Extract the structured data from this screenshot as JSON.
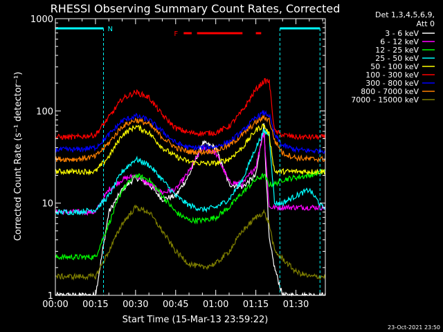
{
  "chart_data": {
    "type": "line",
    "title": "RHESSI Observing Summary Count Rates, Corrected",
    "xlabel": "Start Time (15-Mar-13 23:59:22)",
    "ylabel": "Corrected Count Rate (s⁻¹ detector⁻¹)",
    "yscale": "log",
    "ylim": [
      1,
      1000
    ],
    "xlim_min": [
      0,
      101
    ],
    "x_ticks": [
      "00:00",
      "00:15",
      "00:30",
      "00:45",
      "01:00",
      "01:15",
      "01:30"
    ],
    "x_tick_minutes": [
      0,
      15,
      30,
      45,
      60,
      75,
      90
    ],
    "y_ticks": [
      "1",
      "10",
      "100",
      "1000"
    ],
    "y_tick_values": [
      1,
      10,
      100,
      1000
    ],
    "legend_header": [
      "Det 1,3,4,5,6,9,",
      "Att 0"
    ],
    "legend_position": "right",
    "annotations": {
      "night_label": "N",
      "night_intervals_min": [
        [
          0,
          18
        ],
        [
          84,
          99
        ]
      ],
      "flare_label": "F",
      "flare_segments_min": [
        [
          48,
          51
        ],
        [
          53,
          70
        ],
        [
          75,
          77
        ]
      ]
    },
    "footer_date": "23-Oct-2021 23:50",
    "x_min": [
      1,
      8,
      15,
      20,
      25,
      30,
      35,
      40,
      45,
      50,
      55,
      60,
      65,
      70,
      75,
      78,
      80,
      82,
      85,
      90,
      95,
      100
    ],
    "series": [
      {
        "name": "3 - 6 keV",
        "color": "#ffffff",
        "values": [
          1,
          1,
          1,
          8,
          14,
          19,
          16,
          11,
          12,
          20,
          45,
          40,
          16,
          15,
          20,
          70,
          4,
          2,
          1,
          1,
          1,
          1
        ]
      },
      {
        "name": "6 - 12 keV",
        "color": "#ff00ff",
        "values": [
          8,
          8,
          8,
          14,
          18,
          20,
          16,
          13,
          14,
          22,
          40,
          35,
          17,
          16,
          25,
          60,
          9,
          9,
          9,
          9,
          9,
          9
        ]
      },
      {
        "name": "12 - 25 keV",
        "color": "#00ff00",
        "values": [
          2.6,
          2.6,
          2.6,
          6,
          14,
          20,
          18,
          12,
          8,
          6.5,
          6.5,
          7,
          9,
          13,
          18,
          20,
          16,
          16,
          18,
          19,
          20,
          22
        ]
      },
      {
        "name": "25 - 50 keV",
        "color": "#00ffff",
        "values": [
          8,
          8,
          8.5,
          12,
          22,
          30,
          26,
          18,
          12,
          9.5,
          8.5,
          9,
          11,
          18,
          40,
          60,
          55,
          10,
          10,
          12,
          14,
          9
        ]
      },
      {
        "name": "50 - 100 keV",
        "color": "#ffff00",
        "values": [
          22,
          22,
          22,
          32,
          55,
          68,
          58,
          40,
          32,
          28,
          27,
          27,
          30,
          40,
          62,
          70,
          55,
          22,
          22,
          22,
          22,
          22
        ]
      },
      {
        "name": "100 - 300 keV",
        "color": "#ff0000",
        "values": [
          52,
          52,
          55,
          85,
          135,
          160,
          140,
          90,
          65,
          58,
          57,
          58,
          68,
          100,
          170,
          210,
          210,
          60,
          55,
          52,
          52,
          52
        ]
      },
      {
        "name": "300 - 800 keV",
        "color": "#0000ff",
        "values": [
          38,
          38,
          40,
          55,
          78,
          88,
          80,
          60,
          45,
          40,
          40,
          41,
          46,
          60,
          85,
          95,
          90,
          55,
          42,
          38,
          37,
          37
        ]
      },
      {
        "name": "800 - 7000 keV",
        "color": "#ff8000",
        "values": [
          30,
          30,
          32,
          45,
          68,
          80,
          72,
          52,
          40,
          36,
          36,
          37,
          42,
          55,
          75,
          85,
          80,
          48,
          35,
          31,
          30,
          30
        ]
      },
      {
        "name": "7000 - 15000 keV",
        "color": "#808000",
        "values": [
          1.6,
          1.6,
          1.6,
          3,
          6,
          9,
          8,
          5,
          3,
          2.2,
          2,
          2.2,
          3,
          5,
          7,
          8,
          6,
          3,
          2.5,
          1.8,
          1.6,
          1.6
        ]
      }
    ]
  }
}
